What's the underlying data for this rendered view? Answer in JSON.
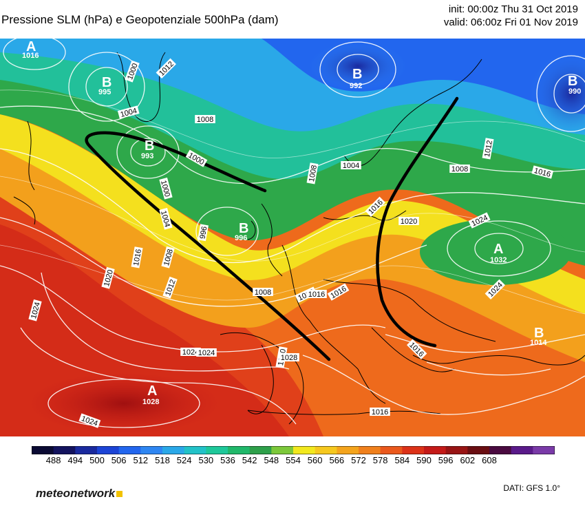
{
  "header": {
    "title": "Pressione SLM (hPa) e Geopotenziale 500hPa (dam)",
    "init": "init: 00:00z Thu 31 Oct 2019",
    "valid": "valid: 06:00z Fri 01 Nov 2019"
  },
  "colorbar": {
    "labels": [
      "488",
      "494",
      "500",
      "506",
      "512",
      "518",
      "524",
      "530",
      "536",
      "542",
      "548",
      "554",
      "560",
      "566",
      "572",
      "578",
      "584",
      "590",
      "596",
      "602",
      "608"
    ],
    "colors": [
      "#0a0a33",
      "#13135e",
      "#1a2a9e",
      "#1c44d6",
      "#2266ee",
      "#2e86f2",
      "#2aa8e8",
      "#22c2c8",
      "#1ec89a",
      "#20b86a",
      "#2ea04a",
      "#7cc83a",
      "#f2e81e",
      "#f6c81e",
      "#f4a41c",
      "#f0801c",
      "#ea581c",
      "#dc3218",
      "#c41a18",
      "#981414",
      "#6a0e12",
      "#4a0a40",
      "#5a1a8a",
      "#7a3aa8"
    ]
  },
  "pressure_centers": [
    {
      "type": "A",
      "value": "1016"
    },
    {
      "type": "B",
      "value": "995"
    },
    {
      "type": "B",
      "value": "993"
    },
    {
      "type": "B",
      "value": "996"
    },
    {
      "type": "B",
      "value": "992"
    },
    {
      "type": "B",
      "value": "990"
    },
    {
      "type": "A",
      "value": "1032"
    },
    {
      "type": "B",
      "value": "1014"
    },
    {
      "type": "A",
      "value": "1028"
    }
  ],
  "isobar_labels": [
    "1000",
    "1012",
    "1004",
    "1008",
    "1000",
    "1000",
    "1004",
    "1008",
    "1012",
    "996",
    "1016",
    "1020",
    "1024",
    "1008",
    "1012",
    "1016",
    "1016",
    "1020",
    "1024",
    "1008",
    "1012",
    "1016",
    "1024",
    "1012",
    "1016",
    "1024",
    "1020",
    "1024",
    "1016",
    "1024",
    "1028",
    "1016",
    "1004",
    "1008"
  ],
  "footer": {
    "logo": "meteonetwork",
    "source": "DATI:  GFS  1.0°"
  }
}
